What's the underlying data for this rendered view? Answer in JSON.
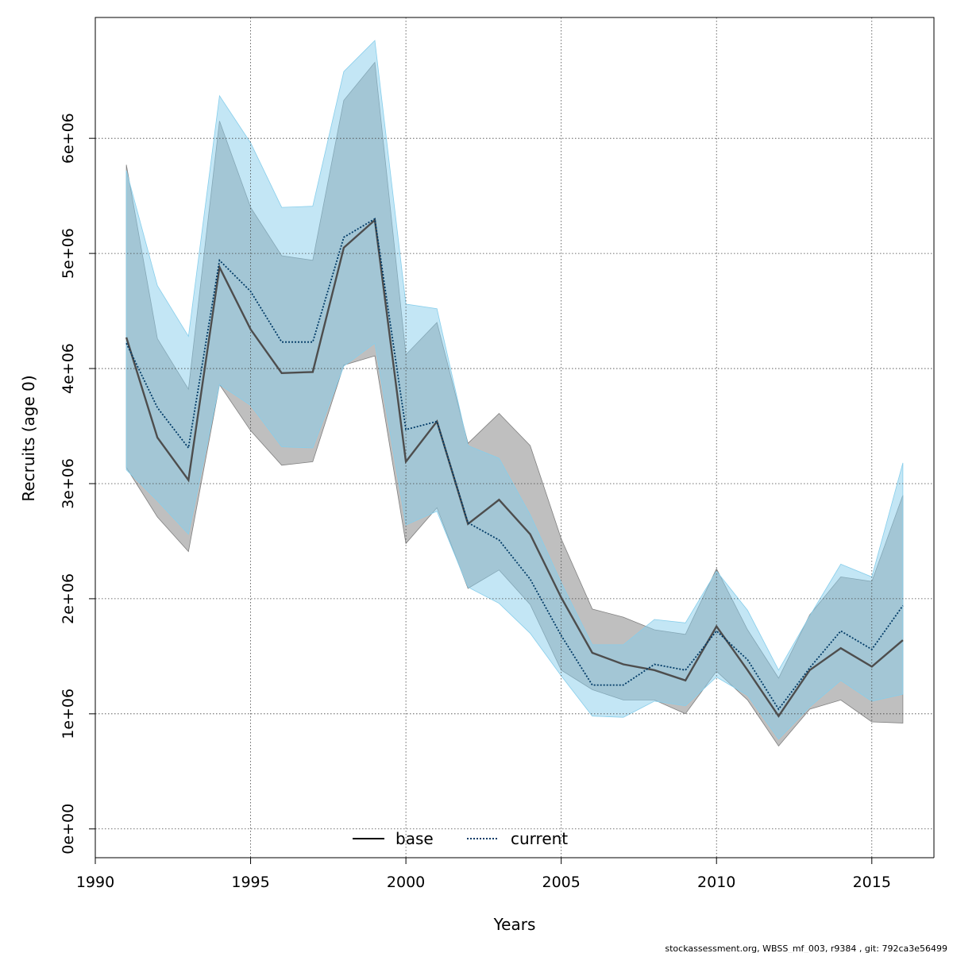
{
  "chart_data": {
    "type": "line",
    "title": "",
    "xlabel": "Years",
    "ylabel": "Recruits (age 0)",
    "xlim": [
      1990,
      2017
    ],
    "ylim": [
      -250000,
      7050000
    ],
    "xticks": [
      1990,
      1995,
      2000,
      2005,
      2010,
      2015
    ],
    "xtick_labels": [
      "1990",
      "1995",
      "2000",
      "2005",
      "2010",
      "2015"
    ],
    "yticks": [
      0,
      1000000,
      2000000,
      3000000,
      4000000,
      5000000,
      6000000
    ],
    "ytick_labels": [
      "0e+00",
      "1e+06",
      "2e+06",
      "3e+06",
      "4e+06",
      "5e+06",
      "6e+06"
    ],
    "grid": true,
    "legend_position": "bottom-center",
    "x": [
      1991,
      1992,
      1993,
      1994,
      1995,
      1996,
      1997,
      1998,
      1999,
      2000,
      2001,
      2002,
      2003,
      2004,
      2005,
      2006,
      2007,
      2008,
      2009,
      2010,
      2011,
      2012,
      2013,
      2014,
      2015,
      2016
    ],
    "series": [
      {
        "name": "base",
        "style": "solid",
        "line_color": "#4d4d4d",
        "band_color": "#808080",
        "values": [
          4270000,
          3400000,
          3030000,
          4880000,
          4340000,
          3960000,
          3970000,
          5050000,
          5290000,
          3190000,
          3540000,
          2650000,
          2860000,
          2560000,
          2010000,
          1530000,
          1430000,
          1380000,
          1290000,
          1760000,
          1380000,
          980000,
          1380000,
          1570000,
          1410000,
          1640000
        ],
        "lower": [
          3140000,
          2710000,
          2410000,
          3860000,
          3460000,
          3160000,
          3190000,
          4030000,
          4110000,
          2480000,
          2790000,
          2090000,
          2250000,
          1950000,
          1380000,
          1210000,
          1120000,
          1120000,
          1000000,
          1370000,
          1120000,
          720000,
          1040000,
          1120000,
          930000,
          920000
        ],
        "upper": [
          5770000,
          4260000,
          3820000,
          6150000,
          5400000,
          4980000,
          4940000,
          6330000,
          6660000,
          4120000,
          4400000,
          3350000,
          3610000,
          3330000,
          2520000,
          1910000,
          1840000,
          1730000,
          1690000,
          2260000,
          1730000,
          1310000,
          1860000,
          2190000,
          2150000,
          2900000
        ]
      },
      {
        "name": "current",
        "style": "dotted",
        "line_color": "#003a66",
        "band_color": "#87ceeb",
        "values": [
          4220000,
          3660000,
          3310000,
          4940000,
          4670000,
          4230000,
          4230000,
          5140000,
          5300000,
          3470000,
          3540000,
          2660000,
          2510000,
          2170000,
          1680000,
          1250000,
          1250000,
          1430000,
          1380000,
          1720000,
          1470000,
          1040000,
          1400000,
          1720000,
          1560000,
          1940000
        ],
        "lower": [
          3120000,
          2850000,
          2560000,
          3860000,
          3680000,
          3320000,
          3310000,
          4020000,
          4220000,
          2640000,
          2760000,
          2100000,
          1960000,
          1700000,
          1330000,
          980000,
          970000,
          1110000,
          1070000,
          1320000,
          1160000,
          780000,
          1060000,
          1290000,
          1110000,
          1170000
        ],
        "upper": [
          5720000,
          4720000,
          4280000,
          6370000,
          5960000,
          5400000,
          5410000,
          6580000,
          6850000,
          4560000,
          4520000,
          3330000,
          3220000,
          2730000,
          2140000,
          1600000,
          1600000,
          1820000,
          1790000,
          2240000,
          1900000,
          1380000,
          1850000,
          2300000,
          2190000,
          3180000
        ]
      }
    ]
  },
  "footer_text": "stockassessment.org, WBSS_mf_003, r9384 , git: 792ca3e56499"
}
